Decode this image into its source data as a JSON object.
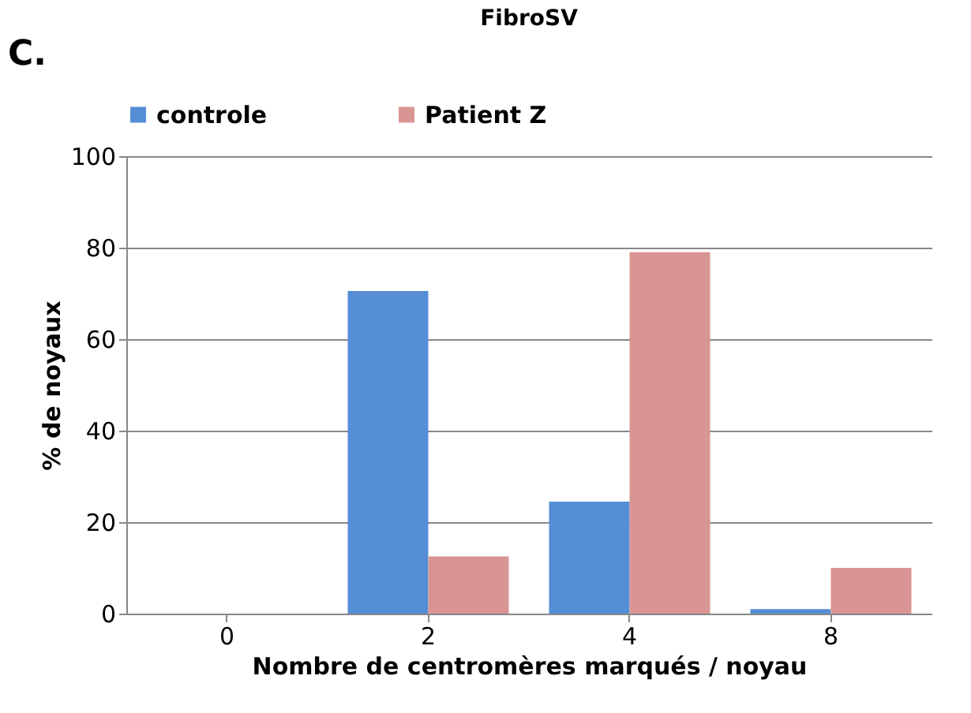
{
  "chart_data": {
    "type": "bar",
    "title": "FibroSV",
    "xlabel": "Nombre de centromères marqués / noyau",
    "ylabel": "% de noyaux",
    "annotations": [
      "C."
    ],
    "categories": [
      "0",
      "2",
      "4",
      "8"
    ],
    "series": [
      {
        "name": "controle",
        "color": "#558ed5",
        "values": [
          0,
          70.5,
          24.5,
          1
        ]
      },
      {
        "name": "Patient Z",
        "color": "#d99594",
        "values": [
          0,
          12.5,
          79,
          10
        ]
      }
    ],
    "ylim": [
      0,
      100
    ],
    "yticks": [
      0,
      20,
      40,
      60,
      80,
      100
    ],
    "grid": "y",
    "legend": "top"
  }
}
